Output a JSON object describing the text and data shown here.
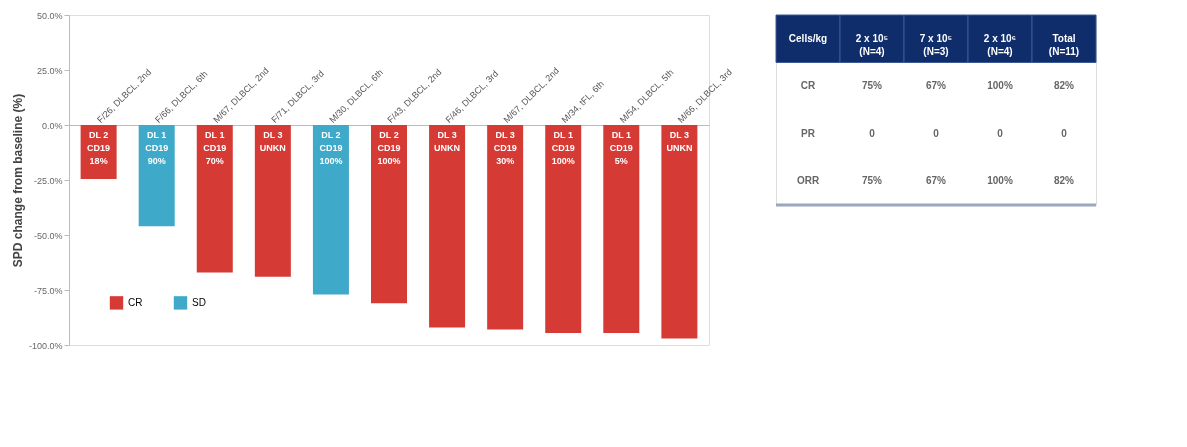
{
  "chart_data": [
    {
      "type": "bar",
      "ylabel": "SPD change from baseline (%)",
      "categories": [
        "F/26, DLBCL, 2nd",
        "F/66, DLBCL, 6th",
        "M/67, DLBCL, 2nd",
        "F/71, DLBCL, 3rd",
        "M/30, DLBCL, 6th",
        "F/43, DLBCL, 2nd",
        "F/46, DLBCL, 3rd",
        "M/67, DLBCL, 2nd",
        "M/34, tFL, 6th",
        "M/54, DLBCL, 5th",
        "M/66, DLBCL, 3rd"
      ],
      "series": [
        {
          "name": "CR",
          "color": "#d63a35",
          "values": [
            -24.5,
            null,
            -67,
            -69,
            null,
            -81,
            -92,
            -93,
            -94.5,
            -94.5,
            -97
          ]
        },
        {
          "name": "SD",
          "color": "#3ea9c9",
          "values": [
            null,
            -46,
            null,
            null,
            -77,
            null,
            null,
            null,
            null,
            null,
            null
          ]
        }
      ],
      "ylim": [
        -100,
        50
      ],
      "yticks": [
        {
          "value": 50,
          "label": "50.0%"
        },
        {
          "value": 25,
          "label": "25.0%"
        },
        {
          "value": 0,
          "label": "0.0%"
        },
        {
          "value": -25,
          "label": "-25.0%"
        },
        {
          "value": -50,
          "label": "-50.0%"
        },
        {
          "value": -75,
          "label": "-75.0%"
        },
        {
          "value": -100,
          "label": "-100.0%"
        }
      ],
      "grid": false,
      "legend": "bottom left",
      "annotations": [
        "DL 2\nCD19\n18%",
        "DL 1\nCD19\n90%",
        "DL 1\nCD19\n70%",
        "DL 3\nUNKN",
        "DL 2\nCD19\n100%",
        "DL 2\nCD19\n100%",
        "DL 3\nUNKN",
        "DL 3\nCD19\n30%",
        "DL 1\nCD19\n100%",
        "DL 1\nCD19\n5%",
        "DL 3\nUNKN"
      ]
    },
    {
      "type": "other",
      "annotations": [
        "Cells/kg",
        "2 x 10⁵\n(N=4)",
        "7 x 10⁵\n(N=3)",
        "2 x 10⁶\n(N=4)",
        "Total\n(N=11)",
        "CR",
        "75%",
        "67%",
        "100%",
        "82%",
        "PR",
        "0",
        "0",
        "0",
        "0",
        "ORR",
        "75%",
        "67%",
        "100%",
        "82%"
      ]
    }
  ]
}
